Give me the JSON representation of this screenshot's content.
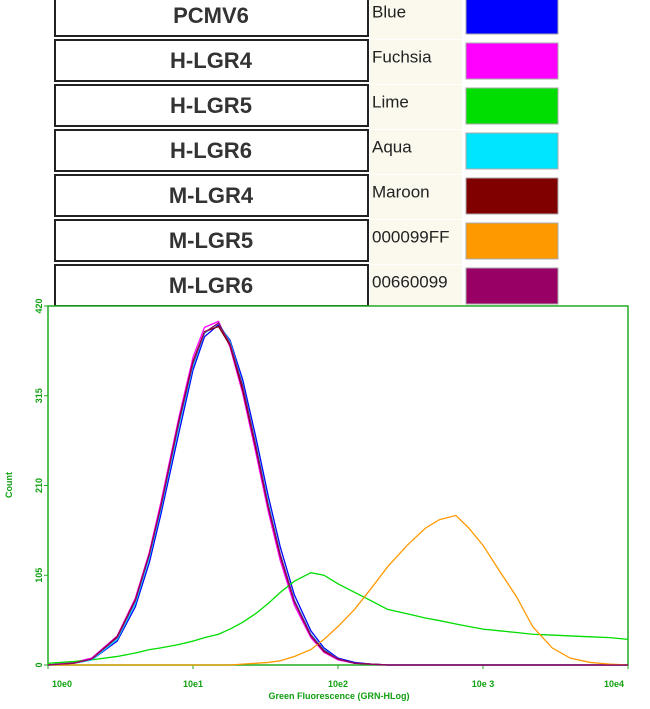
{
  "chart_data": {
    "type": "line",
    "x_label": "Green Fluorescence (GRN-HLog)",
    "y_label": "Count",
    "log_x": true,
    "xlim": [
      1,
      10000
    ],
    "xticks": [
      {
        "value": 1,
        "label": "10e0"
      },
      {
        "value": 10,
        "label": "10e1"
      },
      {
        "value": 100,
        "label": "10e2"
      },
      {
        "value": 1000,
        "label": "10e 3"
      },
      {
        "value": 10000,
        "label": "10e4"
      }
    ],
    "ylim": [
      0,
      420
    ],
    "yticks": [
      0,
      105,
      210,
      315,
      420
    ],
    "x": [
      1,
      1.5,
      2,
      3,
      4,
      5,
      6,
      8,
      10,
      12,
      15,
      18,
      22,
      27,
      33,
      40,
      50,
      65,
      80,
      100,
      130,
      170,
      220,
      300,
      400,
      500,
      650,
      800,
      1000,
      1300,
      1700,
      2200,
      3000,
      4000,
      5500,
      7500,
      10000
    ],
    "series": [
      {
        "name": "PCMV6",
        "color_label": "Blue",
        "color": "#0000ff",
        "values": [
          0,
          2,
          6,
          28,
          68,
          120,
          176,
          272,
          345,
          384,
          398,
          380,
          334,
          268,
          198,
          138,
          82,
          40,
          20,
          8,
          3,
          1,
          0,
          0,
          0,
          0,
          0,
          0,
          0,
          0,
          0,
          0,
          0,
          0,
          0,
          0,
          0
        ]
      },
      {
        "name": "H-LGR4",
        "color_label": "Fuchsia",
        "color": "#ff00ff",
        "values": [
          0,
          3,
          8,
          34,
          78,
          132,
          190,
          290,
          360,
          395,
          402,
          372,
          318,
          250,
          180,
          122,
          70,
          32,
          15,
          6,
          2,
          1,
          0,
          0,
          0,
          0,
          0,
          0,
          0,
          0,
          0,
          0,
          0,
          0,
          0,
          0,
          0
        ]
      },
      {
        "name": "H-LGR5",
        "color_label": "Lime",
        "color": "#00dd00",
        "values": [
          2,
          4,
          6,
          10,
          14,
          18,
          20,
          24,
          28,
          32,
          36,
          42,
          50,
          60,
          72,
          85,
          98,
          108,
          105,
          95,
          85,
          75,
          65,
          60,
          55,
          52,
          48,
          45,
          42,
          40,
          38,
          36,
          35,
          34,
          33,
          32,
          30
        ]
      },
      {
        "name": "H-LGR6",
        "color_label": "Aqua",
        "color": "#00e5ff",
        "values": [
          0,
          2,
          6,
          30,
          72,
          126,
          182,
          280,
          350,
          388,
          400,
          378,
          328,
          260,
          190,
          130,
          76,
          36,
          18,
          7,
          2,
          1,
          0,
          0,
          0,
          0,
          0,
          0,
          0,
          0,
          0,
          0,
          0,
          0,
          0,
          0,
          0
        ]
      },
      {
        "name": "M-LGR4",
        "color_label": "Maroon",
        "color": "#800000",
        "values": [
          0,
          2,
          7,
          33,
          76,
          130,
          186,
          286,
          355,
          390,
          396,
          374,
          322,
          255,
          185,
          127,
          74,
          34,
          16,
          7,
          2,
          1,
          0,
          0,
          0,
          0,
          0,
          0,
          0,
          0,
          0,
          0,
          0,
          0,
          0,
          0,
          0
        ]
      },
      {
        "name": "M-LGR5",
        "color_label": "000099FF",
        "color": "#ff9900",
        "values": [
          0,
          0,
          0,
          0,
          0,
          0,
          0,
          0,
          0,
          0,
          0,
          0,
          1,
          2,
          3,
          5,
          10,
          18,
          30,
          45,
          65,
          90,
          115,
          140,
          160,
          170,
          175,
          160,
          140,
          110,
          80,
          45,
          20,
          8,
          3,
          1,
          0
        ]
      },
      {
        "name": "M-LGR6",
        "color_label": "00660099",
        "color": "#990066",
        "values": [
          0,
          2,
          7,
          32,
          75,
          129,
          185,
          284,
          353,
          389,
          400,
          376,
          326,
          258,
          187,
          129,
          75,
          35,
          17,
          7,
          2,
          1,
          0,
          0,
          0,
          0,
          0,
          0,
          0,
          0,
          0,
          0,
          0,
          0,
          0,
          0,
          0
        ]
      }
    ]
  }
}
